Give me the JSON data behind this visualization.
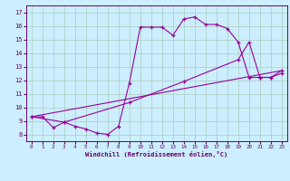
{
  "xlabel": "Windchill (Refroidissement éolien,°C)",
  "bg_color": "#cceeff",
  "line_color": "#990099",
  "grid_color": "#aaccbb",
  "x_ticks": [
    0,
    1,
    2,
    3,
    4,
    5,
    6,
    7,
    8,
    9,
    10,
    11,
    12,
    13,
    14,
    15,
    16,
    17,
    18,
    19,
    20,
    21,
    22,
    23
  ],
  "ylim": [
    7.5,
    17.5
  ],
  "xlim": [
    -0.5,
    23.5
  ],
  "yticks": [
    8,
    9,
    10,
    11,
    12,
    13,
    14,
    15,
    16,
    17
  ],
  "line1_x": [
    0,
    1,
    2,
    3,
    4,
    5,
    6,
    7,
    8,
    9,
    10,
    11,
    12,
    13,
    14,
    15,
    16,
    17,
    18,
    19,
    20,
    21,
    22,
    23
  ],
  "line1_y": [
    9.3,
    9.3,
    8.5,
    8.9,
    8.6,
    8.4,
    8.1,
    8.0,
    8.6,
    11.8,
    15.9,
    15.9,
    15.9,
    15.3,
    16.5,
    16.65,
    16.1,
    16.1,
    15.8,
    14.8,
    12.2,
    12.2,
    12.2,
    12.7
  ],
  "line2_x": [
    0,
    3,
    9,
    14,
    19,
    20,
    21,
    22,
    23
  ],
  "line2_y": [
    9.3,
    8.9,
    10.35,
    11.9,
    13.5,
    14.8,
    12.2,
    12.2,
    12.5
  ],
  "line3_x": [
    0,
    23
  ],
  "line3_y": [
    9.3,
    12.7
  ]
}
